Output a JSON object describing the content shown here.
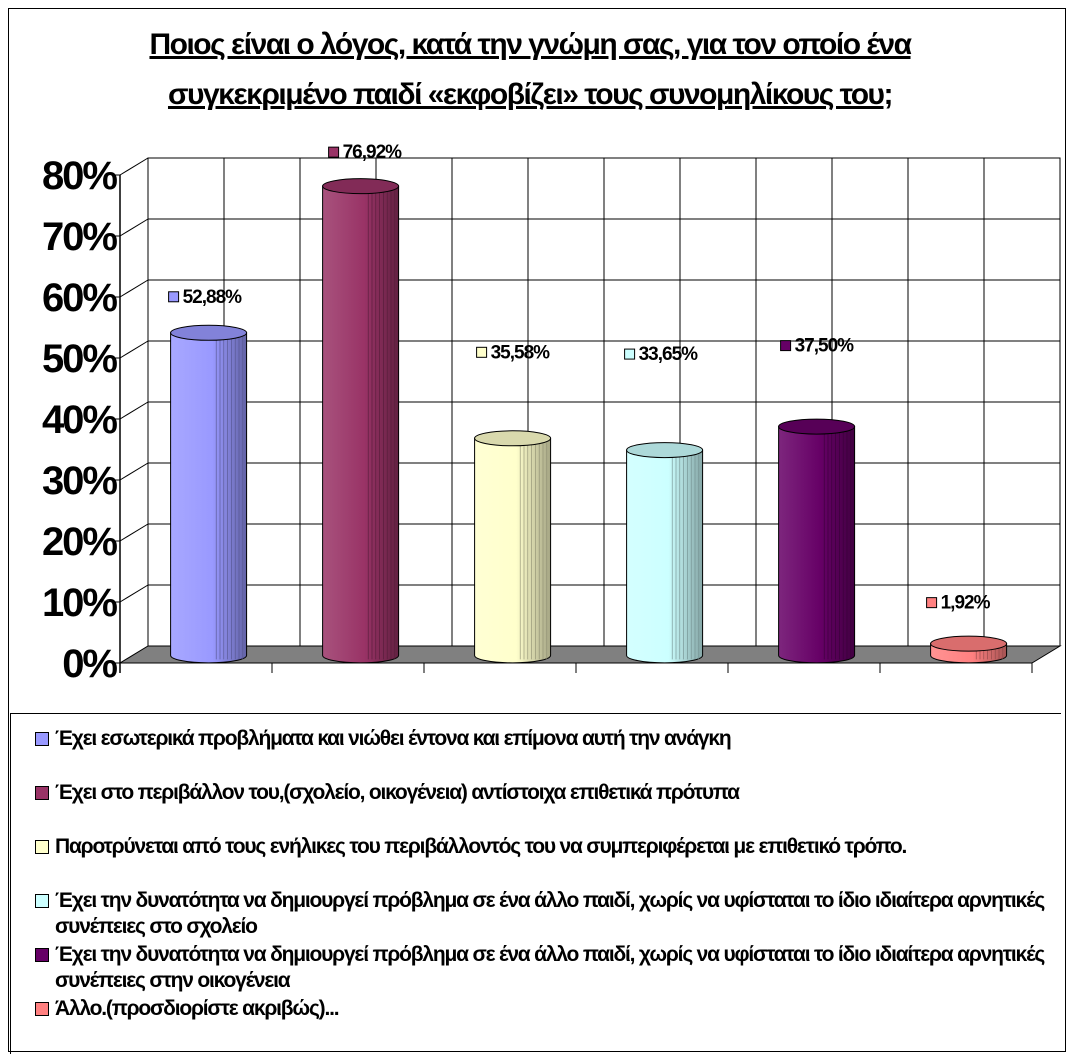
{
  "chart_data": {
    "type": "bar",
    "title": "Ποιος είναι ο λόγος, κατά την γνώμη σας, για τον οποίο ένα συγκεκριμένο παιδί «εκφοβίζει» τους συνομηλίκους του;",
    "ylim": [
      0,
      80
    ],
    "yticks": [
      "0%",
      "10%",
      "20%",
      "30%",
      "40%",
      "50%",
      "60%",
      "70%",
      "80%"
    ],
    "grid": true,
    "legend_position": "bottom",
    "series": [
      {
        "name": "Έχει εσωτερικά προβλήματα και νιώθει έντονα και επίμονα αυτή την ανάγκη",
        "value": 52.88,
        "label": "52,88%",
        "color": "#9999ff"
      },
      {
        "name": "Έχει στο περιβάλλον του,(σχολείο, οικογένεια) αντίστοιχα επιθετικά πρότυπα",
        "value": 76.92,
        "label": "76,92%",
        "color": "#993366"
      },
      {
        "name": "Παροτρύνεται από τους ενήλικες του περιβάλλοντός του να συμπεριφέρεται με επιθετικό τρόπο.",
        "value": 35.58,
        "label": "35,58%",
        "color": "#ffffcc"
      },
      {
        "name": "Έχει την δυνατότητα να δημιουργεί πρόβλημα σε ένα άλλο παιδί, χωρίς να υφίσταται το ίδιο ιδιαίτερα αρνητικές συνέπειες στο σχολείο",
        "value": 33.65,
        "label": "33,65%",
        "color": "#ccffff"
      },
      {
        "name": "Έχει την δυνατότητα να δημιουργεί πρόβλημα σε ένα άλλο παιδί, χωρίς να υφίσταται το ίδιο ιδιαίτερα αρνητικές συνέπειες στην οικογένεια",
        "value": 37.5,
        "label": "37,50%",
        "color": "#660066"
      },
      {
        "name": "Άλλο.(προσδιορίστε ακριβώς)...",
        "value": 1.92,
        "label": "1,92%",
        "color": "#ff8080"
      }
    ]
  }
}
